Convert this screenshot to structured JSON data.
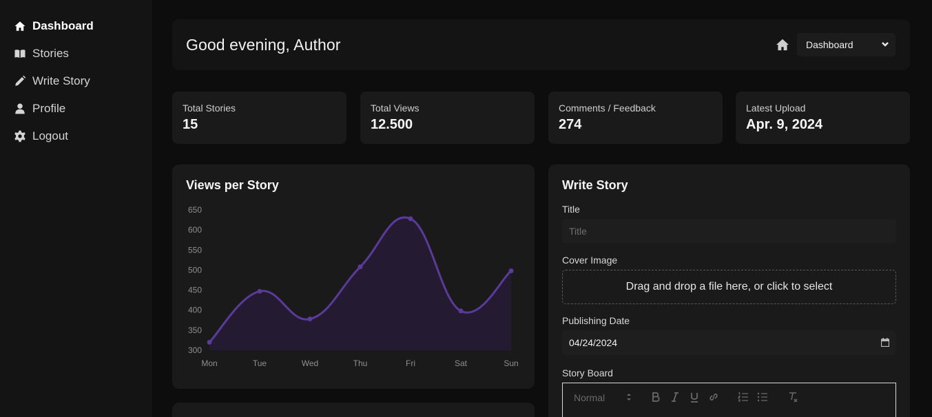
{
  "sidebar": {
    "items": [
      {
        "label": "Dashboard",
        "icon": "home-icon"
      },
      {
        "label": "Stories",
        "icon": "book-icon"
      },
      {
        "label": "Write Story",
        "icon": "pencil-icon"
      },
      {
        "label": "Profile",
        "icon": "user-icon"
      },
      {
        "label": "Logout",
        "icon": "gear-icon"
      }
    ]
  },
  "header": {
    "greeting": "Good evening, Author",
    "page_select": "Dashboard"
  },
  "stats": [
    {
      "label": "Total Stories",
      "value": "15"
    },
    {
      "label": "Total Views",
      "value": "12.500"
    },
    {
      "label": "Comments / Feedback",
      "value": "274"
    },
    {
      "label": "Latest Upload",
      "value": "Apr. 9, 2024"
    }
  ],
  "chart_panel": {
    "title": "Views per Story"
  },
  "chart_data": {
    "type": "area",
    "categories": [
      "Mon",
      "Tue",
      "Wed",
      "Thu",
      "Fri",
      "Sat",
      "Sun"
    ],
    "values": [
      320,
      447,
      378,
      508,
      628,
      398,
      498
    ],
    "ylim": [
      300,
      650
    ],
    "yticks": [
      300,
      350,
      400,
      450,
      500,
      550,
      600,
      650
    ],
    "grid": false,
    "color": "#5b3a9a"
  },
  "write_story": {
    "title": "Write Story",
    "title_label": "Title",
    "title_placeholder": "Title",
    "cover_label": "Cover Image",
    "cover_dropzone": "Drag and drop a file here, or click to select",
    "date_label": "Publishing Date",
    "date_value": "04/24/2024",
    "storyboard_label": "Story Board",
    "format_select": "Normal"
  },
  "colors": {
    "background": "#0d0d0d",
    "sidebar": "#141414",
    "card": "#1a1a1a",
    "accent": "#5b3a9a"
  }
}
